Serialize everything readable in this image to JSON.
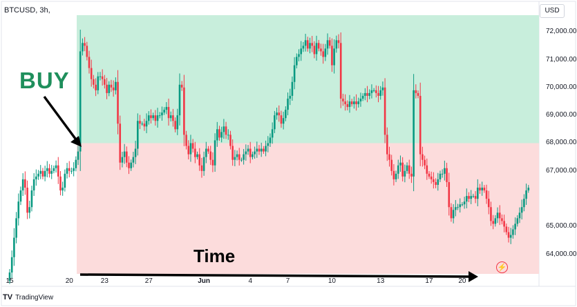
{
  "header": {
    "symbol": "BTCUSD, 3h,",
    "currency": "USD"
  },
  "annotations": {
    "buy_label": "BUY",
    "time_label": "Time"
  },
  "brand": {
    "name": "TradingView",
    "mark": "TV"
  },
  "icons": {
    "flash": "flash-icon"
  },
  "colors": {
    "profit_zone": "#c8eedc",
    "loss_zone": "#fcdcdc",
    "up_candle": "#089981",
    "down_candle": "#f23645",
    "annotation_green": "#1f8f5c"
  },
  "chart_data": {
    "type": "candlestick",
    "symbol": "BTCUSD",
    "interval": "3h",
    "y_axis": {
      "ticks": [
        "72,000.00",
        "71,000.00",
        "70,000.00",
        "69,000.00",
        "68,000.00",
        "67,000.00",
        "65,000.00",
        "64,000.00"
      ],
      "tick_values": [
        72000,
        71000,
        70000,
        69000,
        68000,
        67000,
        65000,
        64000
      ],
      "range": [
        63300,
        72600
      ]
    },
    "x_axis": {
      "ticks": [
        "15",
        "20",
        "23",
        "27",
        "Jun",
        "4",
        "7",
        "10",
        "13",
        "17",
        "20"
      ],
      "tick_index": [
        0,
        27,
        43,
        63,
        88,
        109,
        126,
        146,
        168,
        190,
        205
      ],
      "range": [
        0,
        226
      ]
    },
    "zones": {
      "entry": 68000,
      "top": 72600,
      "bottom": 63300,
      "entry_index": 31
    },
    "close": [
      63350,
      63900,
      64600,
      65300,
      65900,
      66300,
      66700,
      66400,
      65500,
      65700,
      66300,
      66700,
      66800,
      66900,
      67000,
      66800,
      67000,
      67100,
      66900,
      67000,
      67100,
      67200,
      66800,
      66300,
      66400,
      66900,
      67100,
      67000,
      67000,
      67100,
      67400,
      67700,
      71300,
      71600,
      71500,
      71100,
      70700,
      70300,
      70100,
      69900,
      70400,
      70400,
      70300,
      70100,
      69800,
      70100,
      70000,
      69900,
      70200,
      68700,
      67300,
      67500,
      67700,
      67300,
      67100,
      67300,
      67500,
      67800,
      68800,
      68700,
      68700,
      68600,
      68800,
      69000,
      68900,
      69000,
      68800,
      69000,
      69000,
      69100,
      69200,
      69300,
      68900,
      69000,
      68800,
      68500,
      69000,
      70100,
      70000,
      68300,
      67900,
      67600,
      68000,
      67800,
      67500,
      67600,
      67200,
      67000,
      67500,
      67800,
      67700,
      67400,
      67200,
      68100,
      68500,
      68200,
      68400,
      68600,
      68300,
      68300,
      67900,
      67400,
      67500,
      67600,
      67400,
      67400,
      67600,
      67700,
      67800,
      67500,
      67600,
      67700,
      67800,
      67700,
      67800,
      67700,
      67900,
      68000,
      68200,
      68500,
      69000,
      69100,
      69000,
      68700,
      68900,
      69200,
      69600,
      69700,
      70200,
      70800,
      71100,
      71200,
      71400,
      71500,
      71700,
      71400,
      71600,
      71500,
      71200,
      71600,
      71400,
      71300,
      71100,
      71400,
      71700,
      71500,
      70800,
      71400,
      71700,
      71600,
      69600,
      69500,
      69400,
      69300,
      69500,
      69400,
      69500,
      69400,
      69500,
      69600,
      69700,
      69800,
      69700,
      69800,
      69900,
      69900,
      69800,
      69700,
      69900,
      70000,
      68300,
      67600,
      67400,
      67000,
      66700,
      66900,
      67200,
      67300,
      66800,
      67000,
      67200,
      66900,
      66800,
      69900,
      69800,
      69700,
      67600,
      67400,
      67200,
      66900,
      66800,
      66700,
      66600,
      66500,
      66700,
      66900,
      66900,
      67100,
      66600,
      65700,
      65300,
      65600,
      65700,
      65700,
      65800,
      65800,
      65900,
      66100,
      66000,
      66100,
      66100,
      66000,
      66400,
      66300,
      66400,
      66300,
      66000,
      65700,
      65200,
      65100,
      65300,
      65500,
      65300,
      65200,
      65000,
      64800,
      64600,
      64700,
      64900,
      65100,
      65300,
      65500,
      65700,
      66000,
      66300,
      66400
    ]
  }
}
